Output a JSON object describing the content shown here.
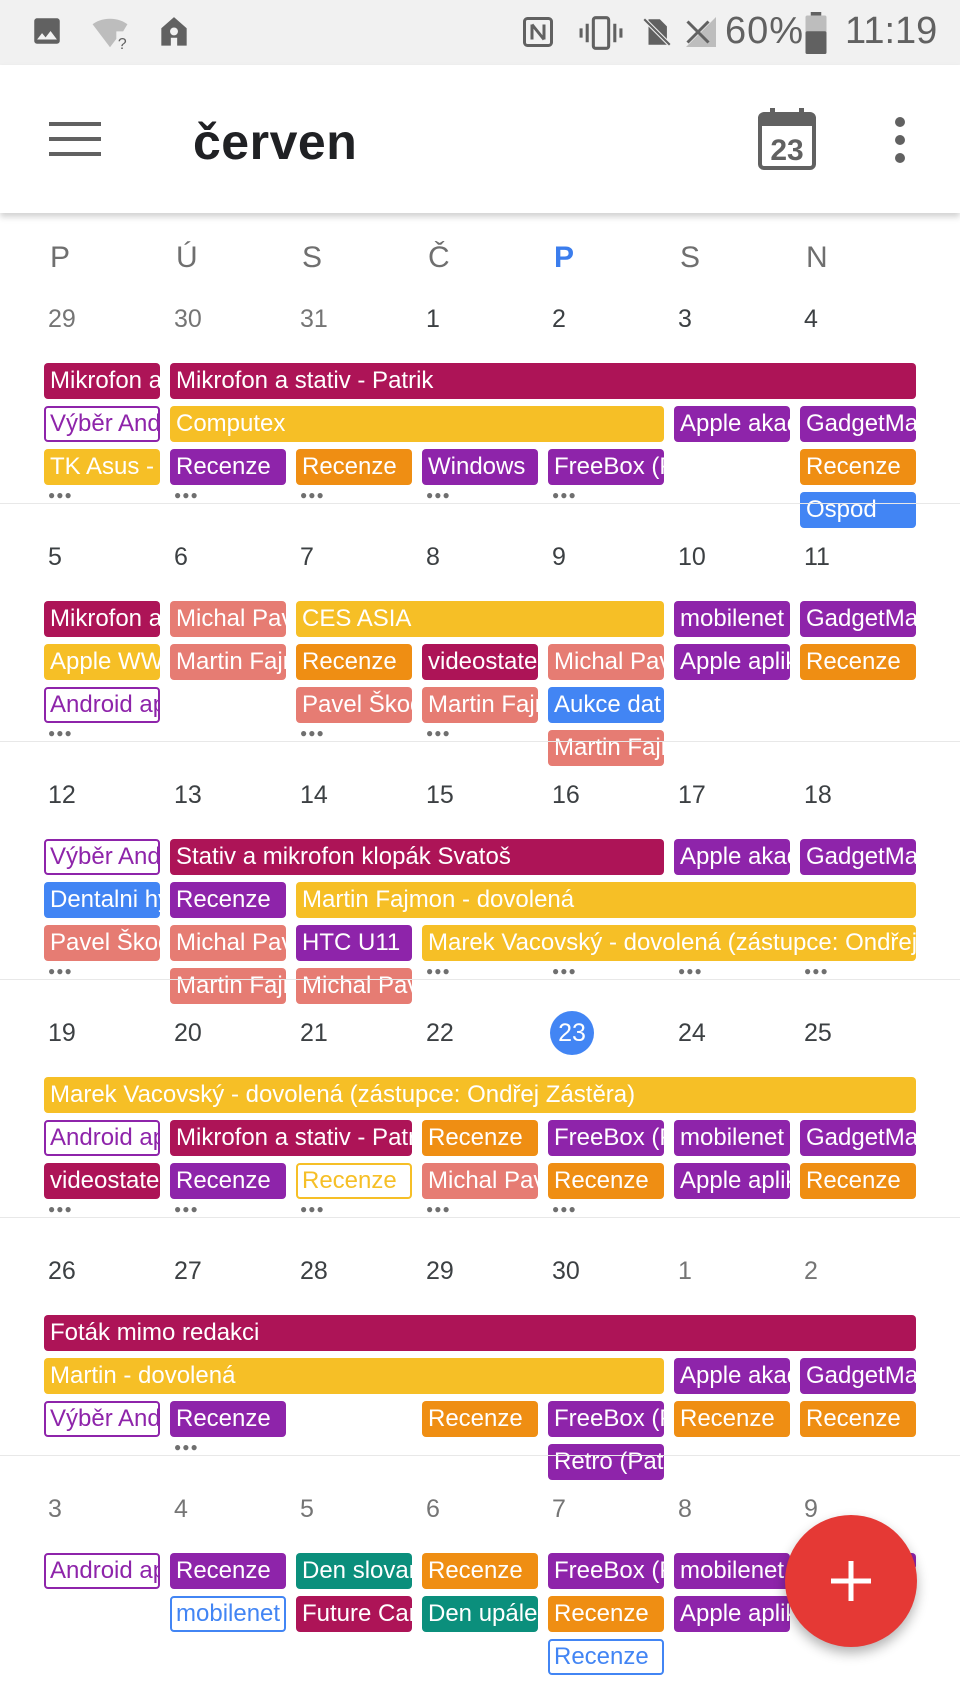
{
  "status_bar": {
    "battery": "60%",
    "clock": "11:19",
    "left_icons": [
      "image-icon",
      "wifi-question-icon",
      "location-home-icon"
    ],
    "right_icons": [
      "nfc-icon",
      "vibrate-icon",
      "no-sim-icon",
      "signal-off-icon",
      "battery-icon"
    ]
  },
  "app_bar": {
    "title": "červen",
    "today_icon_number": "23"
  },
  "weekdays": [
    {
      "label": "P"
    },
    {
      "label": "Ú"
    },
    {
      "label": "S"
    },
    {
      "label": "Č"
    },
    {
      "label": "P",
      "today": true
    },
    {
      "label": "S"
    },
    {
      "label": "N"
    }
  ],
  "colors": {
    "magenta": "#ad1457",
    "yellow": "#f6bf26",
    "purple": "#8e24aa",
    "orange": "#ef8e13",
    "salmon": "#e67c73",
    "blue": "#4285f4",
    "teal": "#0b8f7c",
    "today_blue": "#4285f4",
    "fab_red": "#e53935"
  },
  "weeks": [
    {
      "days": [
        {
          "n": "29",
          "other": true
        },
        {
          "n": "30",
          "other": true
        },
        {
          "n": "31",
          "other": true
        },
        {
          "n": "1"
        },
        {
          "n": "2"
        },
        {
          "n": "3"
        },
        {
          "n": "4"
        }
      ],
      "rows": [
        [
          {
            "start": 0,
            "span": 1,
            "text": "Mikrofon a stativ - Patrik",
            "color": "magenta"
          },
          {
            "start": 1,
            "span": 6,
            "text": "Mikrofon a stativ - Patrik",
            "color": "magenta"
          }
        ],
        [
          {
            "start": 0,
            "span": 1,
            "text": "Výběr Android",
            "color": "purple",
            "outline": true
          },
          {
            "start": 1,
            "span": 4,
            "text": "Computex",
            "color": "yellow"
          },
          {
            "start": 5,
            "span": 1,
            "text": "Apple akademie",
            "color": "purple"
          },
          {
            "start": 6,
            "span": 1,
            "text": "GadgetMania",
            "color": "purple"
          }
        ],
        [
          {
            "start": 0,
            "span": 1,
            "text": "TK Asus - Computex",
            "color": "yellow"
          },
          {
            "start": 1,
            "span": 1,
            "text": "Recenze",
            "color": "purple"
          },
          {
            "start": 2,
            "span": 1,
            "text": "Recenze",
            "color": "orange"
          },
          {
            "start": 3,
            "span": 1,
            "text": "Windows",
            "color": "purple"
          },
          {
            "start": 4,
            "span": 1,
            "text": "FreeBox (Patrik)",
            "color": "purple"
          },
          {
            "start": 6,
            "span": 1,
            "text": "Recenze",
            "color": "orange"
          }
        ],
        [
          {
            "start": 6,
            "span": 1,
            "text": "Ospod",
            "color": "blue"
          }
        ]
      ],
      "more": [
        0,
        1,
        2,
        3,
        4
      ]
    },
    {
      "days": [
        {
          "n": "5"
        },
        {
          "n": "6"
        },
        {
          "n": "7"
        },
        {
          "n": "8"
        },
        {
          "n": "9"
        },
        {
          "n": "10"
        },
        {
          "n": "11"
        }
      ],
      "rows": [
        [
          {
            "start": 0,
            "span": 1,
            "text": "Mikrofon a stativ",
            "color": "magenta"
          },
          {
            "start": 1,
            "span": 1,
            "text": "Michal Pavlík",
            "color": "salmon"
          },
          {
            "start": 2,
            "span": 3,
            "text": "CES ASIA",
            "color": "yellow"
          },
          {
            "start": 5,
            "span": 1,
            "text": "mobilenet",
            "color": "purple"
          },
          {
            "start": 6,
            "span": 1,
            "text": "GadgetMania",
            "color": "purple"
          }
        ],
        [
          {
            "start": 0,
            "span": 1,
            "text": "Apple WWDC",
            "color": "yellow"
          },
          {
            "start": 1,
            "span": 1,
            "text": "Martin Fajmon",
            "color": "salmon"
          },
          {
            "start": 2,
            "span": 1,
            "text": "Recenze",
            "color": "orange"
          },
          {
            "start": 3,
            "span": 1,
            "text": "videostatek",
            "color": "magenta"
          },
          {
            "start": 4,
            "span": 1,
            "text": "Michal Pavlík",
            "color": "salmon"
          },
          {
            "start": 5,
            "span": 1,
            "text": "Apple aplikace",
            "color": "purple"
          },
          {
            "start": 6,
            "span": 1,
            "text": "Recenze",
            "color": "orange"
          }
        ],
        [
          {
            "start": 0,
            "span": 1,
            "text": "Android aplikace",
            "color": "purple",
            "outline": true
          },
          {
            "start": 2,
            "span": 1,
            "text": "Pavel Škoda",
            "color": "salmon"
          },
          {
            "start": 3,
            "span": 1,
            "text": "Martin Fajmon",
            "color": "salmon"
          },
          {
            "start": 4,
            "span": 1,
            "text": "Aukce dat",
            "color": "blue"
          }
        ],
        [
          {
            "start": 4,
            "span": 1,
            "text": "Martin Fajmon",
            "color": "salmon"
          }
        ]
      ],
      "more": [
        0,
        2,
        3
      ]
    },
    {
      "days": [
        {
          "n": "12"
        },
        {
          "n": "13"
        },
        {
          "n": "14"
        },
        {
          "n": "15"
        },
        {
          "n": "16"
        },
        {
          "n": "17"
        },
        {
          "n": "18"
        }
      ],
      "rows": [
        [
          {
            "start": 0,
            "span": 1,
            "text": "Výběr Android",
            "color": "purple",
            "outline": true
          },
          {
            "start": 1,
            "span": 4,
            "text": "Stativ a mikrofon klopák Svatoš",
            "color": "magenta"
          },
          {
            "start": 5,
            "span": 1,
            "text": "Apple akademie",
            "color": "purple"
          },
          {
            "start": 6,
            "span": 1,
            "text": "GadgetMania",
            "color": "purple"
          }
        ],
        [
          {
            "start": 0,
            "span": 1,
            "text": "Dentalni hygiena",
            "color": "blue"
          },
          {
            "start": 1,
            "span": 1,
            "text": "Recenze",
            "color": "purple"
          },
          {
            "start": 2,
            "span": 5,
            "text": "Martin Fajmon - dovolená",
            "color": "yellow"
          }
        ],
        [
          {
            "start": 0,
            "span": 1,
            "text": "Pavel Škoda",
            "color": "salmon"
          },
          {
            "start": 1,
            "span": 1,
            "text": "Michal Pavlík",
            "color": "salmon"
          },
          {
            "start": 2,
            "span": 1,
            "text": "HTC U11",
            "color": "purple"
          },
          {
            "start": 3,
            "span": 4,
            "text": "Marek Vacovský - dovolená (zástupce: Ondřej Zástěra)",
            "color": "yellow"
          }
        ],
        [
          {
            "start": 1,
            "span": 1,
            "text": "Martin Fajmon",
            "color": "salmon"
          },
          {
            "start": 2,
            "span": 1,
            "text": "Michal Pavlík",
            "color": "salmon"
          }
        ]
      ],
      "more": [
        0,
        3,
        4,
        5,
        6
      ]
    },
    {
      "days": [
        {
          "n": "19"
        },
        {
          "n": "20"
        },
        {
          "n": "21"
        },
        {
          "n": "22"
        },
        {
          "n": "23",
          "today": true
        },
        {
          "n": "24"
        },
        {
          "n": "25"
        }
      ],
      "rows": [
        [
          {
            "start": 0,
            "span": 7,
            "text": "Marek Vacovský - dovolená (zástupce: Ondřej Zástěra)",
            "color": "yellow"
          }
        ],
        [
          {
            "start": 0,
            "span": 1,
            "text": "Android aplikace",
            "color": "purple",
            "outline": true
          },
          {
            "start": 1,
            "span": 2,
            "text": "Mikrofon a stativ - Patrik",
            "color": "magenta"
          },
          {
            "start": 3,
            "span": 1,
            "text": "Recenze",
            "color": "orange"
          },
          {
            "start": 4,
            "span": 1,
            "text": "FreeBox (Patrik)",
            "color": "purple"
          },
          {
            "start": 5,
            "span": 1,
            "text": "mobilenet",
            "color": "purple"
          },
          {
            "start": 6,
            "span": 1,
            "text": "GadgetMania",
            "color": "purple"
          }
        ],
        [
          {
            "start": 0,
            "span": 1,
            "text": "videostatek",
            "color": "magenta"
          },
          {
            "start": 1,
            "span": 1,
            "text": "Recenze",
            "color": "purple"
          },
          {
            "start": 2,
            "span": 1,
            "text": "Recenze",
            "color": "yellow",
            "outline": true
          },
          {
            "start": 3,
            "span": 1,
            "text": "Michal Pavlík",
            "color": "salmon"
          },
          {
            "start": 4,
            "span": 1,
            "text": "Recenze",
            "color": "orange"
          },
          {
            "start": 5,
            "span": 1,
            "text": "Apple aplikace",
            "color": "purple"
          },
          {
            "start": 6,
            "span": 1,
            "text": "Recenze",
            "color": "orange"
          }
        ]
      ],
      "more": [
        0,
        1,
        2,
        3,
        4
      ]
    },
    {
      "days": [
        {
          "n": "26"
        },
        {
          "n": "27"
        },
        {
          "n": "28"
        },
        {
          "n": "29"
        },
        {
          "n": "30"
        },
        {
          "n": "1",
          "other": true
        },
        {
          "n": "2",
          "other": true
        }
      ],
      "rows": [
        [
          {
            "start": 0,
            "span": 7,
            "text": "Foták mimo redakci",
            "color": "magenta"
          }
        ],
        [
          {
            "start": 0,
            "span": 5,
            "text": "Martin - dovolená",
            "color": "yellow"
          },
          {
            "start": 5,
            "span": 1,
            "text": "Apple akademie",
            "color": "purple"
          },
          {
            "start": 6,
            "span": 1,
            "text": "GadgetMania",
            "color": "purple"
          }
        ],
        [
          {
            "start": 0,
            "span": 1,
            "text": "Výběr Android",
            "color": "purple",
            "outline": true
          },
          {
            "start": 1,
            "span": 1,
            "text": "Recenze",
            "color": "purple"
          },
          {
            "start": 3,
            "span": 1,
            "text": "Recenze",
            "color": "orange"
          },
          {
            "start": 4,
            "span": 1,
            "text": "FreeBox (Patrik)",
            "color": "purple"
          },
          {
            "start": 5,
            "span": 1,
            "text": "Recenze",
            "color": "orange"
          },
          {
            "start": 6,
            "span": 1,
            "text": "Recenze",
            "color": "orange"
          }
        ],
        [
          {
            "start": 4,
            "span": 1,
            "text": "Retro (Patrik)",
            "color": "purple"
          }
        ]
      ],
      "more": [
        1
      ]
    },
    {
      "days": [
        {
          "n": "3",
          "other": true
        },
        {
          "n": "4",
          "other": true
        },
        {
          "n": "5",
          "other": true
        },
        {
          "n": "6",
          "other": true
        },
        {
          "n": "7",
          "other": true
        },
        {
          "n": "8",
          "other": true
        },
        {
          "n": "9",
          "other": true
        }
      ],
      "rows": [
        [
          {
            "start": 0,
            "span": 1,
            "text": "Android aplikace",
            "color": "purple",
            "outline": true
          },
          {
            "start": 1,
            "span": 1,
            "text": "Recenze",
            "color": "purple"
          },
          {
            "start": 2,
            "span": 1,
            "text": "Den slovanských věrozvěstů",
            "color": "teal"
          },
          {
            "start": 3,
            "span": 1,
            "text": "Recenze",
            "color": "orange"
          },
          {
            "start": 4,
            "span": 1,
            "text": "FreeBox (Patrik)",
            "color": "purple"
          },
          {
            "start": 5,
            "span": 1,
            "text": "mobilenet",
            "color": "purple"
          },
          {
            "start": 6,
            "span": 1,
            "text": "GadgetMania",
            "color": "purple"
          }
        ],
        [
          {
            "start": 1,
            "span": 1,
            "text": "mobilenet",
            "color": "blue",
            "outline": true
          },
          {
            "start": 2,
            "span": 1,
            "text": "Future Camp",
            "color": "magenta"
          },
          {
            "start": 3,
            "span": 1,
            "text": "Den upálení mistra Jana Husa",
            "color": "teal"
          },
          {
            "start": 4,
            "span": 1,
            "text": "Recenze",
            "color": "orange"
          },
          {
            "start": 5,
            "span": 1,
            "text": "Apple aplikace",
            "color": "purple"
          }
        ],
        [
          {
            "start": 4,
            "span": 1,
            "text": "Recenze",
            "color": "blue",
            "outline": true
          }
        ]
      ],
      "more": []
    }
  ],
  "fab": {
    "icon": "plus-icon",
    "label": "+"
  }
}
